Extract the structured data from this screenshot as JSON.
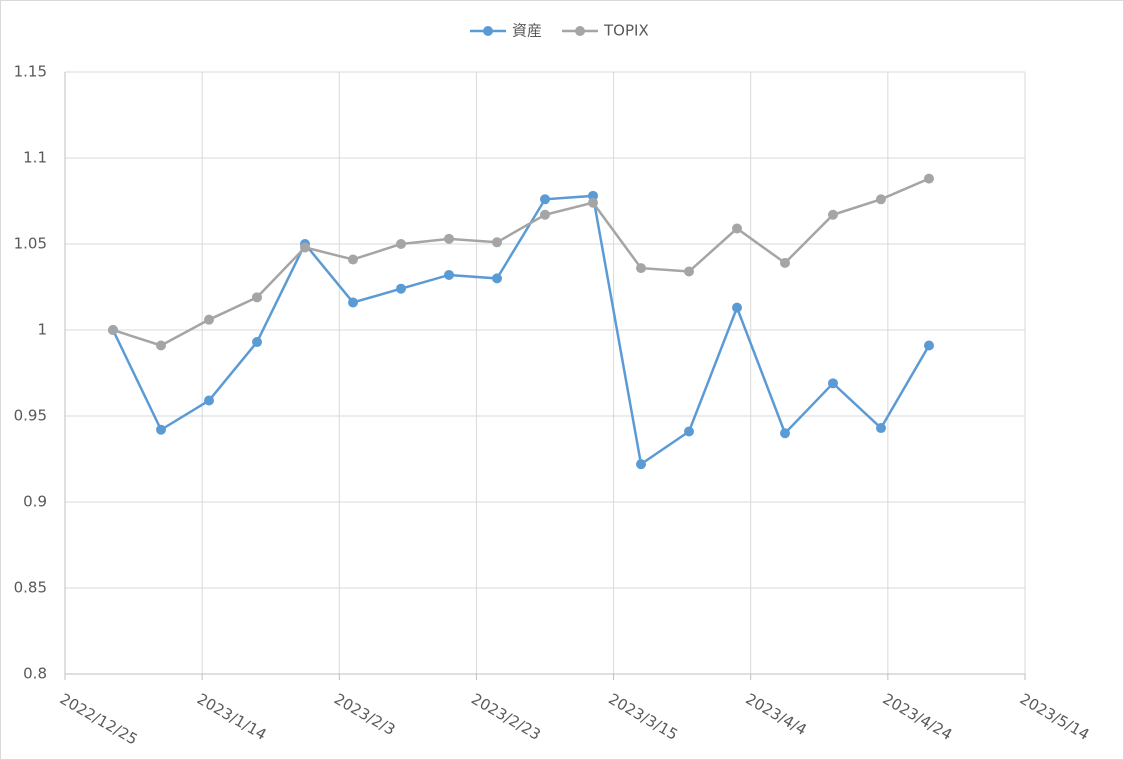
{
  "chart_data": {
    "type": "line",
    "x": [
      "2023/1/1",
      "2023/1/8",
      "2023/1/15",
      "2023/1/22",
      "2023/1/29",
      "2023/2/5",
      "2023/2/12",
      "2023/2/19",
      "2023/2/26",
      "2023/3/5",
      "2023/3/12",
      "2023/3/19",
      "2023/3/26",
      "2023/4/2",
      "2023/4/9",
      "2023/4/16",
      "2023/4/23",
      "2023/4/30"
    ],
    "series": [
      {
        "name": "資産",
        "color": "#5b9bd5",
        "values": [
          1.0,
          0.942,
          0.959,
          0.993,
          1.05,
          1.016,
          1.024,
          1.032,
          1.03,
          1.076,
          1.078,
          0.922,
          0.941,
          1.013,
          0.94,
          0.969,
          0.943,
          0.991
        ]
      },
      {
        "name": "TOPIX",
        "color": "#a5a5a5",
        "values": [
          1.0,
          0.991,
          1.006,
          1.019,
          1.048,
          1.041,
          1.05,
          1.053,
          1.051,
          1.067,
          1.074,
          1.036,
          1.034,
          1.059,
          1.039,
          1.067,
          1.076,
          1.088
        ]
      }
    ],
    "xlim": [
      "2022/12/25",
      "2023/5/14"
    ],
    "xticks": [
      "2022/12/25",
      "2023/1/14",
      "2023/2/3",
      "2023/2/23",
      "2023/3/15",
      "2023/4/4",
      "2023/4/24",
      "2023/5/14"
    ],
    "ylim": [
      0.8,
      1.15
    ],
    "yticks": [
      0.8,
      0.85,
      0.9,
      0.95,
      1,
      1.05,
      1.1,
      1.15
    ],
    "grid": true,
    "legend": "top"
  }
}
